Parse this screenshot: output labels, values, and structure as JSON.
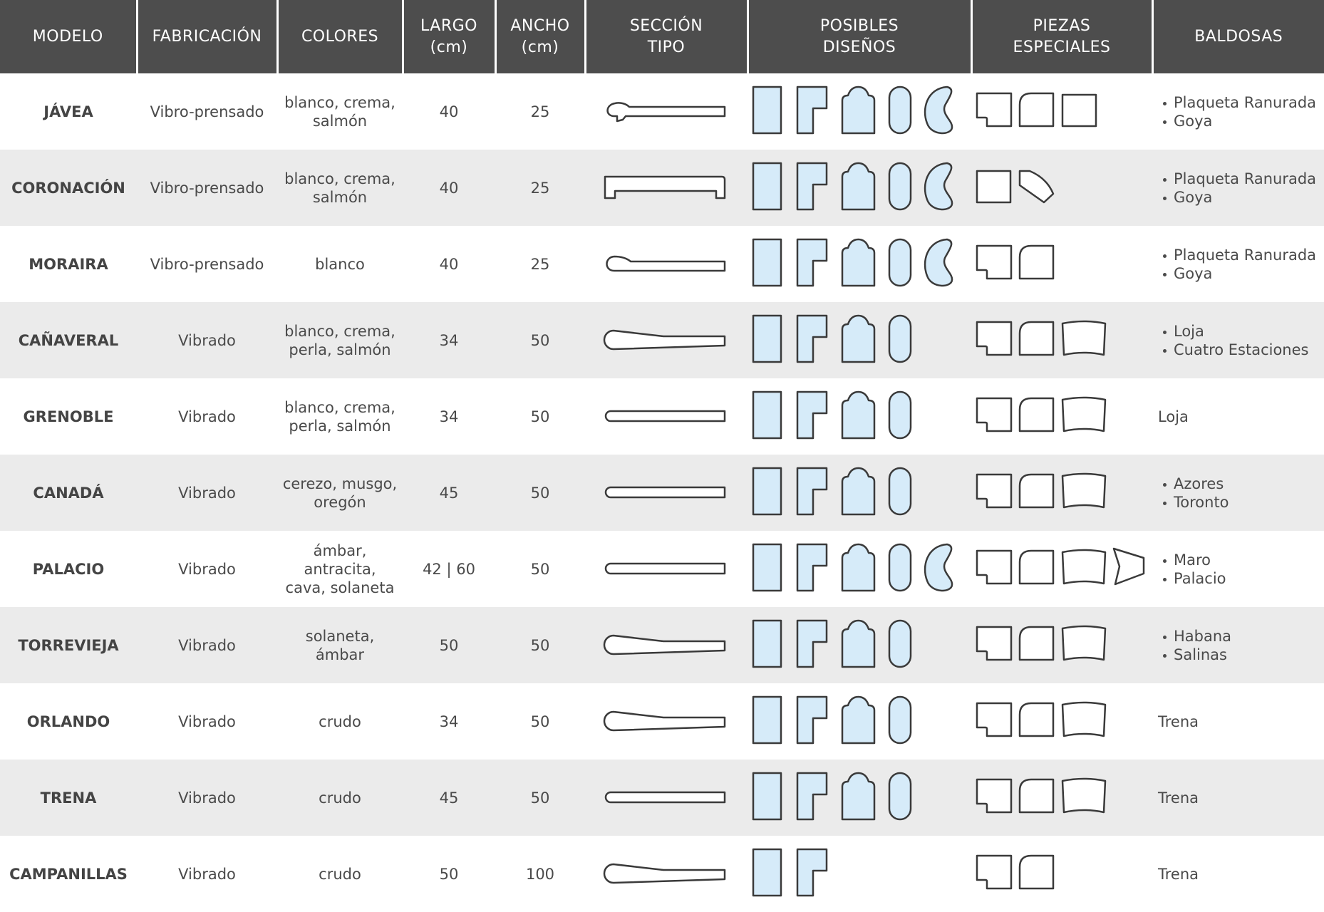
{
  "header": [
    "MODELO",
    "FABRICACIÓN",
    "COLORES",
    "LARGO\n(cm)",
    "ANCHO\n(cm)",
    "SECCIÓN\nTIPO",
    "POSIBLES\nDISEÑOS",
    "PIEZAS\nESPECIALES",
    "BALDOSAS"
  ],
  "rows": [
    {
      "modelo": "JÁVEA",
      "fabricacion": "Vibro-prensado",
      "colores": "blanco, crema,\nsalmón",
      "largo": 40,
      "ancho": 25,
      "baldosas": [
        "Plaqueta Ranurada",
        "Goya"
      ]
    },
    {
      "modelo": "CORONACIÓN",
      "fabricacion": "Vibro-prensado",
      "colores": "blanco, crema,\nsalmón",
      "largo": 40,
      "ancho": 25,
      "baldosas": [
        "Plaqueta Ranurada",
        "Goya"
      ]
    },
    {
      "modelo": "MORAIRA",
      "fabricacion": "Vibro-prensado",
      "colores": "blanco",
      "largo": 40,
      "ancho": 25,
      "baldosas": [
        "Plaqueta Ranurada",
        "Goya"
      ]
    },
    {
      "modelo": "CAÑAVERAL",
      "fabricacion": "Vibrado",
      "colores": "blanco, crema,\nperla, salmón",
      "largo": 34,
      "ancho": 50,
      "baldosas": [
        "Loja",
        "Cuatro Estaciones"
      ]
    },
    {
      "modelo": "GRENOBLE",
      "fabricacion": "Vibrado",
      "colores": "blanco, crema,\nperla, salmón",
      "largo": 34,
      "ancho": 50,
      "baldosas": "Loja"
    },
    {
      "modelo": "CANADÁ",
      "fabricacion": "Vibrado",
      "colores": "cerezo, musgo,\noregón",
      "largo": 45,
      "ancho": 50,
      "baldosas": [
        "Azores",
        "Toronto"
      ]
    },
    {
      "modelo": "PALACIO",
      "fabricacion": "Vibrado",
      "colores": "ámbar,\nantracita,\ncava, solaneta",
      "largo": "42 | 60",
      "ancho": 50,
      "baldosas": [
        "Maro",
        "Palacio"
      ]
    },
    {
      "modelo": "TORREVIEJA",
      "fabricacion": "Vibrado",
      "colores": "solaneta,\námbar",
      "largo": 50,
      "ancho": 50,
      "baldosas": [
        "Habana",
        "Salinas"
      ]
    },
    {
      "modelo": "ORLANDO",
      "fabricacion": "Vibrado",
      "colores": "crudo",
      "largo": 34,
      "ancho": 50,
      "baldosas": "Trena"
    },
    {
      "modelo": "TRENA",
      "fabricacion": "Vibrado",
      "colores": "crudo",
      "largo": 45,
      "ancho": 50,
      "baldosas": "Trena"
    },
    {
      "modelo": "CAMPANILLAS",
      "fabricacion": "Vibrado",
      "colores": "crudo",
      "largo": 50,
      "ancho": 100,
      "baldosas": "Trena"
    }
  ]
}
